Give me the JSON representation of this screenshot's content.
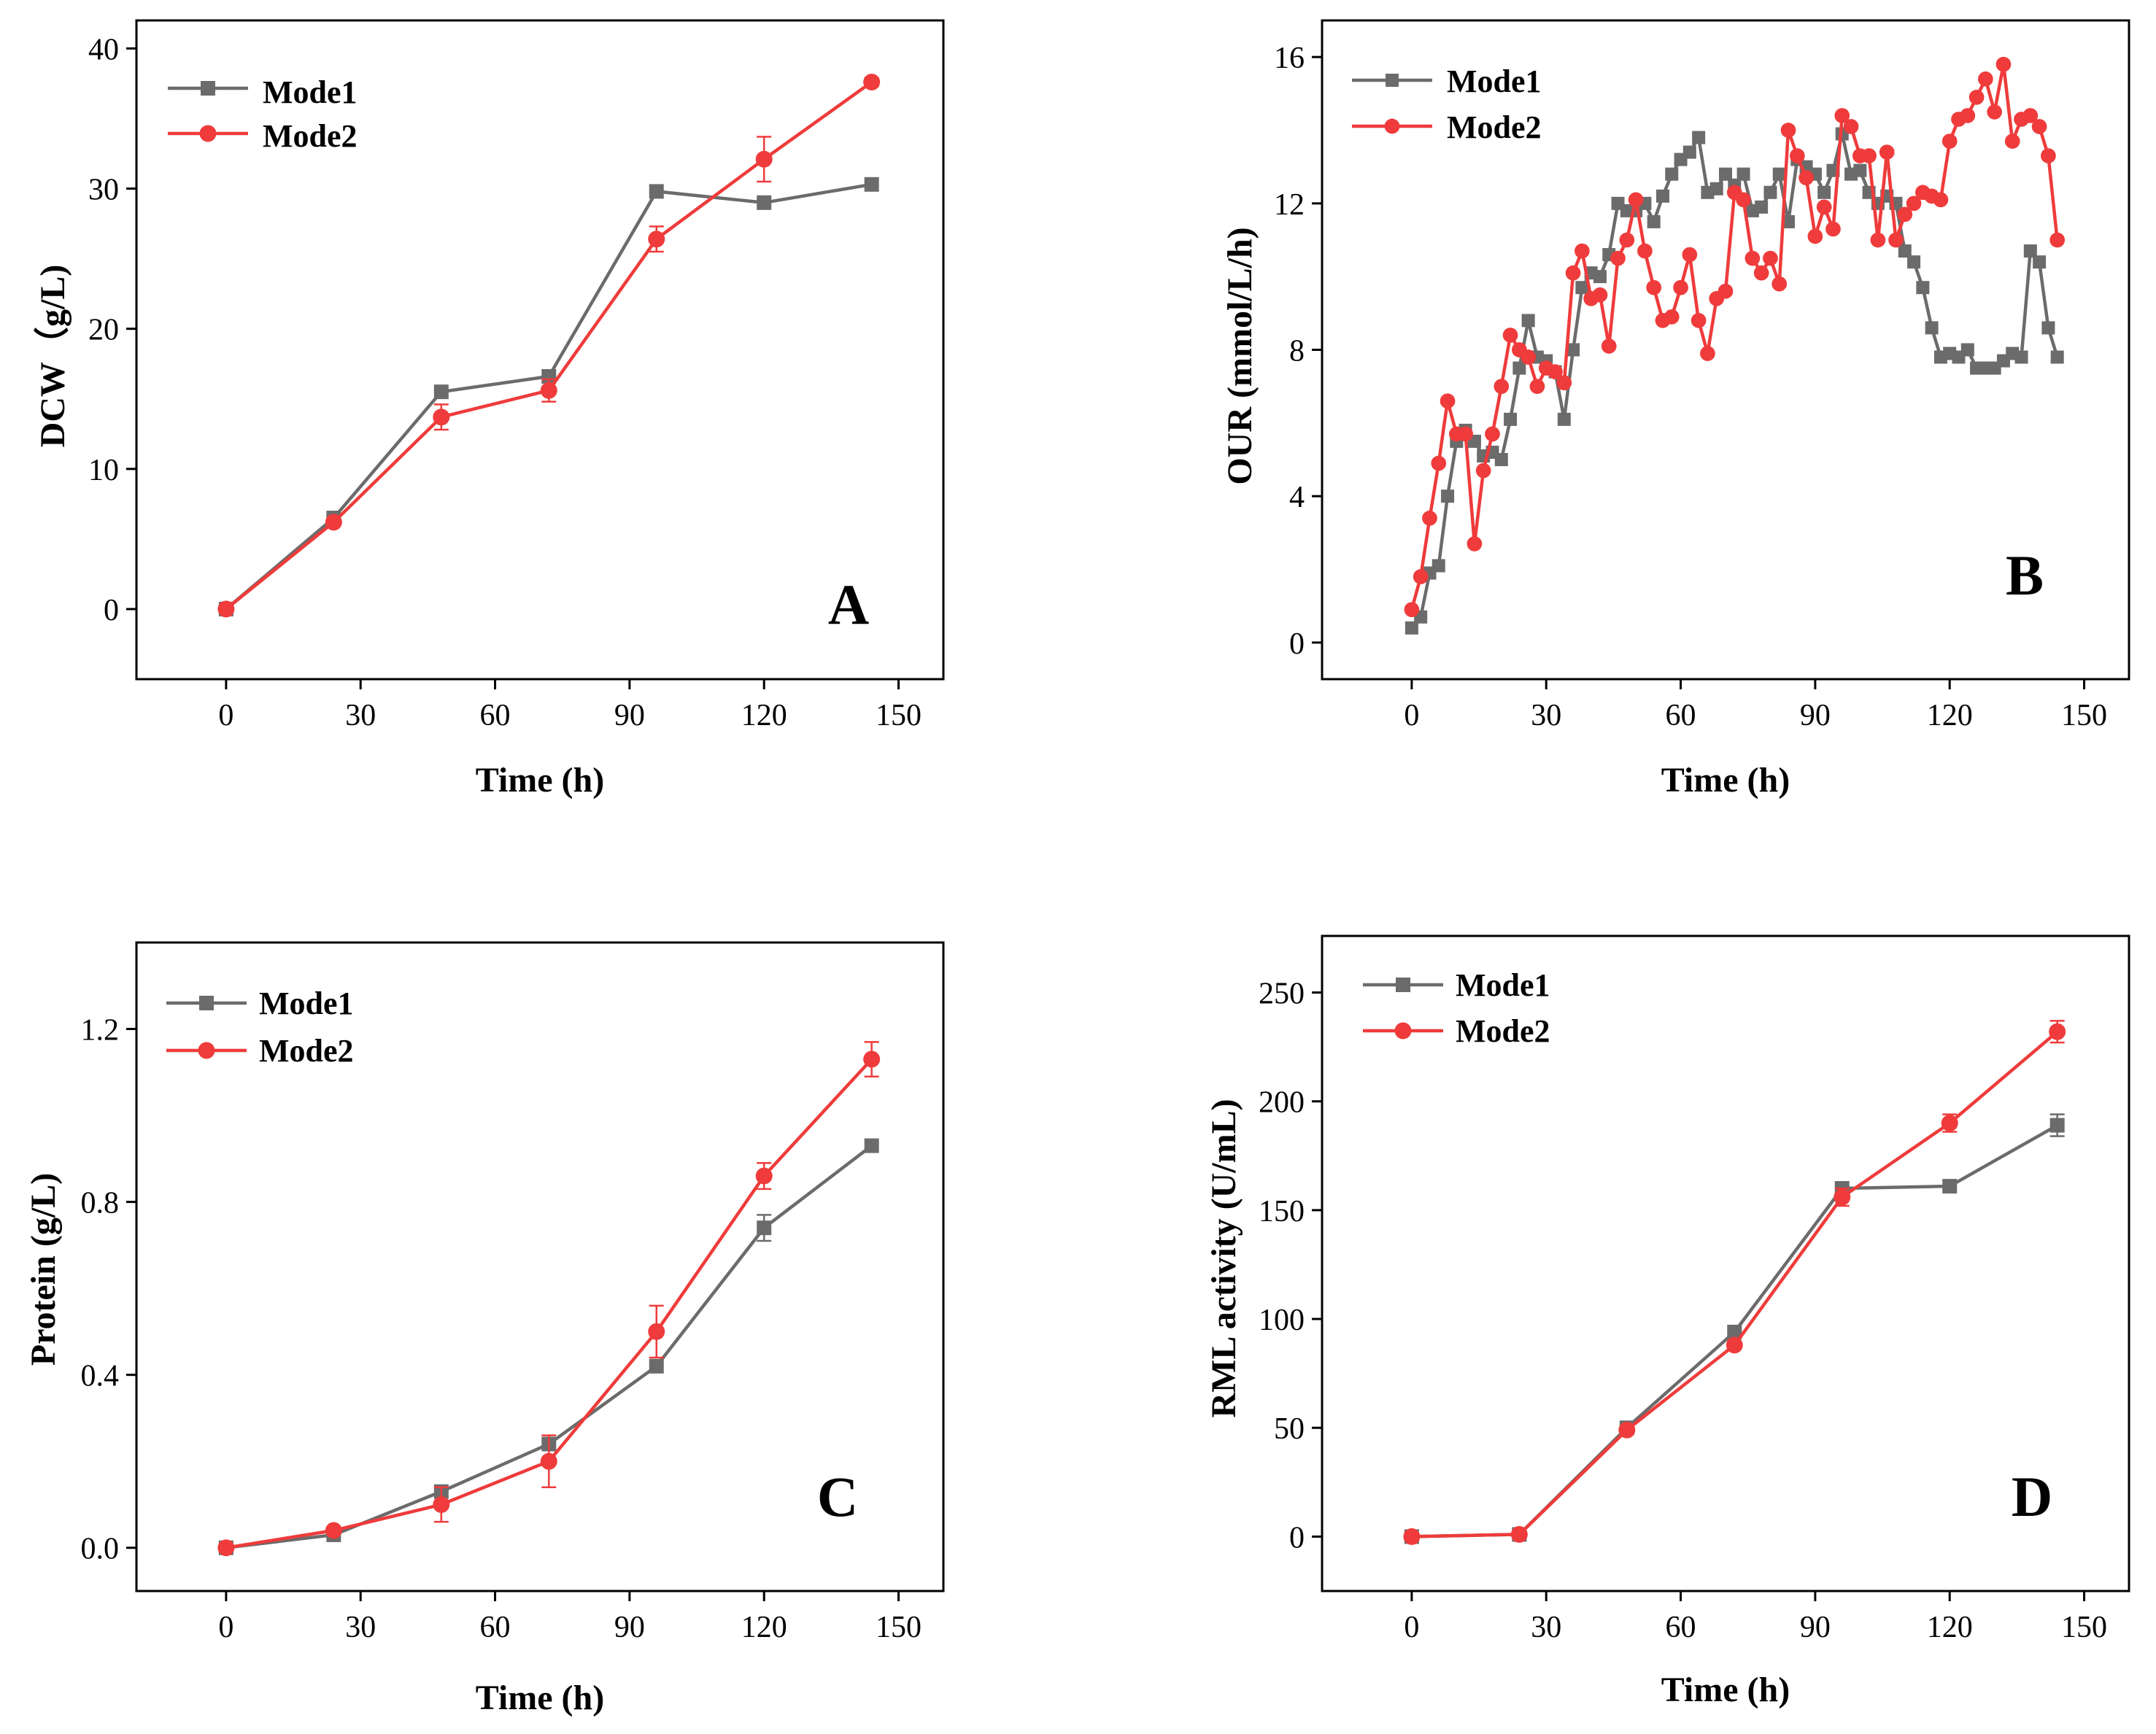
{
  "colors": {
    "mode1": "#6b6b6b",
    "mode2": "#ef3b3b",
    "axis": "#000000"
  },
  "chart_data": [
    {
      "panel": "A",
      "type": "line",
      "xlabel": "Time (h)",
      "ylabel": "DCW（g/L)",
      "xlim": [
        -20,
        160
      ],
      "ylim": [
        -5,
        42
      ],
      "xticks": [
        0,
        30,
        60,
        90,
        120,
        150
      ],
      "yticks": [
        0,
        10,
        20,
        30,
        40
      ],
      "ytick_labels": [
        "0",
        "10",
        "20",
        "30",
        "40"
      ],
      "legend": "top-left",
      "series": [
        {
          "name": "Mode1",
          "marker": "square",
          "x": [
            0,
            24,
            48,
            72,
            96,
            120,
            144
          ],
          "values": [
            0,
            6.5,
            15.5,
            16.6,
            29.8,
            29.0,
            30.3
          ],
          "err": [
            0,
            0,
            0,
            0,
            0,
            0,
            0
          ]
        },
        {
          "name": "Mode2",
          "marker": "circle",
          "x": [
            0,
            24,
            48,
            72,
            96,
            120,
            144
          ],
          "values": [
            0,
            6.2,
            13.7,
            15.6,
            26.4,
            32.1,
            37.6
          ],
          "err": [
            0,
            0,
            0.9,
            0.8,
            0.9,
            1.6,
            0.3
          ]
        }
      ]
    },
    {
      "panel": "B",
      "type": "line",
      "xlabel": "Time (h)",
      "ylabel": "OUR (mmol/L/h)",
      "xlim": [
        -20,
        160
      ],
      "ylim": [
        -1,
        17
      ],
      "xticks": [
        0,
        30,
        60,
        90,
        120,
        150
      ],
      "yticks": [
        0,
        4,
        8,
        12,
        16
      ],
      "ytick_labels": [
        "0",
        "4",
        "8",
        "12",
        "16"
      ],
      "legend": "top-left",
      "series": [
        {
          "name": "Mode1",
          "marker": "square",
          "x": [
            0,
            2,
            4,
            6,
            8,
            10,
            12,
            14,
            16,
            18,
            20,
            22,
            24,
            26,
            28,
            30,
            32,
            34,
            36,
            38,
            40,
            42,
            44,
            46,
            48,
            50,
            52,
            54,
            56,
            58,
            60,
            62,
            64,
            66,
            68,
            70,
            72,
            74,
            76,
            78,
            80,
            82,
            84,
            86,
            88,
            90,
            92,
            94,
            96,
            98,
            100,
            102,
            104,
            106,
            108,
            110,
            112,
            114,
            116,
            118,
            120,
            122,
            124,
            126,
            128,
            130,
            132,
            134,
            136,
            138,
            140,
            142,
            144
          ],
          "values": [
            0.4,
            0.7,
            1.9,
            2.1,
            4.0,
            5.5,
            5.8,
            5.5,
            5.1,
            5.2,
            5.0,
            6.1,
            7.5,
            8.8,
            7.8,
            7.7,
            7.4,
            6.1,
            8.0,
            9.7,
            10.1,
            10.0,
            10.6,
            12.0,
            11.8,
            11.8,
            12.0,
            11.5,
            12.2,
            12.8,
            13.2,
            13.4,
            13.8,
            12.3,
            12.4,
            12.8,
            12.5,
            12.8,
            11.8,
            11.9,
            12.3,
            12.8,
            11.5,
            13.2,
            13.0,
            12.8,
            12.3,
            12.9,
            13.9,
            12.8,
            12.9,
            12.3,
            12.0,
            12.2,
            12.0,
            10.7,
            10.4,
            9.7,
            8.6,
            7.8,
            7.9,
            7.8,
            8.0,
            7.5,
            7.5,
            7.5,
            7.7,
            7.9,
            7.8,
            10.7,
            10.4,
            8.6,
            7.8
          ],
          "err": []
        },
        {
          "name": "Mode2",
          "marker": "circle",
          "x": [
            0,
            2,
            4,
            6,
            8,
            10,
            12,
            14,
            16,
            18,
            20,
            22,
            24,
            26,
            28,
            30,
            32,
            34,
            36,
            38,
            40,
            42,
            44,
            46,
            48,
            50,
            52,
            54,
            56,
            58,
            60,
            62,
            64,
            66,
            68,
            70,
            72,
            74,
            76,
            78,
            80,
            82,
            84,
            86,
            88,
            90,
            92,
            94,
            96,
            98,
            100,
            102,
            104,
            106,
            108,
            110,
            112,
            114,
            116,
            118,
            120,
            122,
            124,
            126,
            128,
            130,
            132,
            134,
            136,
            138,
            140,
            142,
            144
          ],
          "values": [
            0.9,
            1.8,
            3.4,
            4.9,
            6.6,
            5.7,
            5.7,
            2.7,
            4.7,
            5.7,
            7.0,
            8.4,
            8.0,
            7.8,
            7.0,
            7.5,
            7.4,
            7.1,
            10.1,
            10.7,
            9.4,
            9.5,
            8.1,
            10.5,
            11.0,
            12.1,
            10.7,
            9.7,
            8.8,
            8.9,
            9.7,
            10.6,
            8.8,
            7.9,
            9.4,
            9.6,
            12.3,
            12.1,
            10.5,
            10.1,
            10.5,
            9.8,
            14.0,
            13.3,
            12.7,
            11.1,
            11.9,
            11.3,
            14.4,
            14.1,
            13.3,
            13.3,
            11.0,
            13.4,
            11.0,
            11.7,
            12.0,
            12.3,
            12.2,
            12.1,
            13.7,
            14.3,
            14.4,
            14.9,
            15.4,
            14.5,
            15.8,
            13.7,
            14.3,
            14.4,
            14.1,
            13.3,
            11.0
          ],
          "err": []
        }
      ]
    },
    {
      "panel": "C",
      "type": "line",
      "xlabel": "Time (h)",
      "ylabel": "Protein (g/L)",
      "xlim": [
        -20,
        160
      ],
      "ylim": [
        -0.1,
        1.4
      ],
      "xticks": [
        0,
        30,
        60,
        90,
        120,
        150
      ],
      "yticks": [
        0,
        0.4,
        0.8,
        1.2
      ],
      "ytick_labels": [
        "0.0",
        "0.4",
        "0.8",
        "1.2"
      ],
      "legend": "top-left",
      "series": [
        {
          "name": "Mode1",
          "marker": "square",
          "x": [
            0,
            24,
            48,
            72,
            96,
            120,
            144
          ],
          "values": [
            0,
            0.03,
            0.13,
            0.24,
            0.42,
            0.74,
            0.93
          ],
          "err": [
            0,
            0,
            0,
            0,
            0,
            0.03,
            0
          ]
        },
        {
          "name": "Mode2",
          "marker": "circle",
          "x": [
            0,
            24,
            48,
            72,
            96,
            120,
            144
          ],
          "values": [
            0,
            0.04,
            0.1,
            0.2,
            0.5,
            0.86,
            1.13
          ],
          "err": [
            0,
            0,
            0.04,
            0.06,
            0.06,
            0.03,
            0.04
          ]
        }
      ]
    },
    {
      "panel": "D",
      "type": "line",
      "xlabel": "Time (h)",
      "ylabel": "RML activity (U/mL)",
      "xlim": [
        -20,
        160
      ],
      "ylim": [
        -25,
        276
      ],
      "xticks": [
        0,
        30,
        60,
        90,
        120,
        150
      ],
      "yticks": [
        0,
        50,
        100,
        150,
        200,
        250
      ],
      "ytick_labels": [
        "0",
        "50",
        "100",
        "150",
        "200",
        "250"
      ],
      "legend": "top-left",
      "series": [
        {
          "name": "Mode1",
          "marker": "square",
          "x": [
            0,
            24,
            48,
            72,
            96,
            120,
            144
          ],
          "values": [
            0,
            1,
            50,
            94,
            160,
            161,
            189
          ],
          "err": [
            0,
            0,
            0,
            0,
            0,
            0,
            5
          ]
        },
        {
          "name": "Mode2",
          "marker": "circle",
          "x": [
            0,
            24,
            48,
            72,
            96,
            120,
            144
          ],
          "values": [
            0,
            1,
            49,
            88,
            156,
            190,
            232
          ],
          "err": [
            0,
            0,
            0,
            0,
            4,
            4,
            5
          ]
        }
      ]
    }
  ]
}
